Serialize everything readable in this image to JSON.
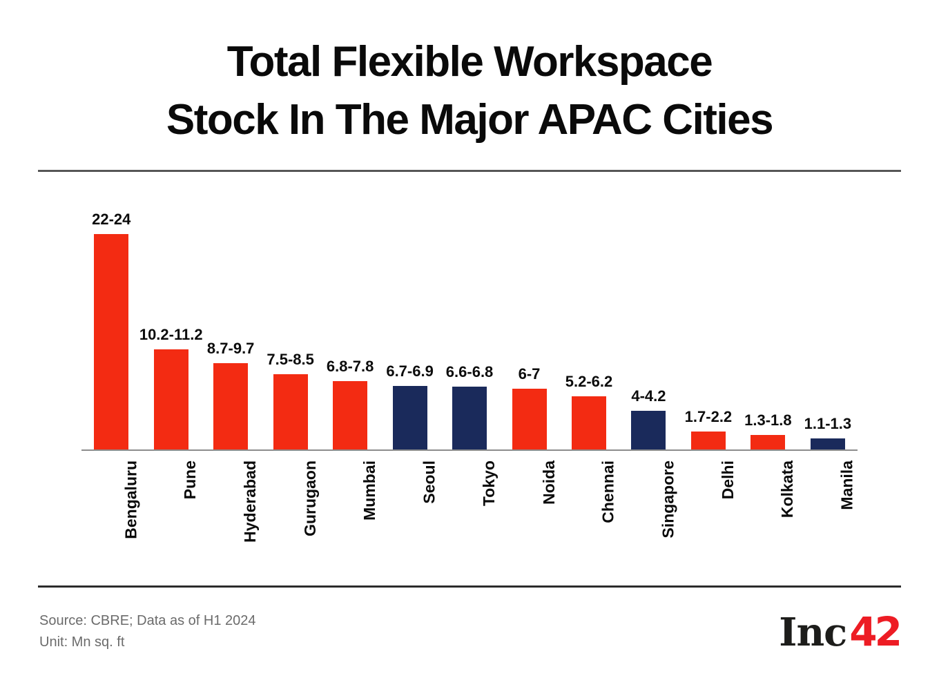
{
  "title": {
    "line1": "Total Flexible Workspace",
    "line2": "Stock In The Major APAC Cities"
  },
  "chart_data": {
    "type": "bar",
    "title": "Total Flexible Workspace Stock In The Major APAC Cities",
    "xlabel": "",
    "ylabel": "Mn sq. ft",
    "ylim": [
      0,
      24
    ],
    "grid": false,
    "legend_position": "none",
    "value_labels_shown": true,
    "categories": [
      "Bengaluru",
      "Pune",
      "Hyderabad",
      "Gurugaon",
      "Mumbai",
      "Seoul",
      "Tokyo",
      "Noida",
      "Chennai",
      "Singapore",
      "Delhi",
      "Kolkata",
      "Manila"
    ],
    "bars": [
      {
        "city": "Bengaluru",
        "label": "22-24",
        "low": 22,
        "high": 24,
        "color": "red"
      },
      {
        "city": "Pune",
        "label": "10.2-11.2",
        "low": 10.2,
        "high": 11.2,
        "color": "red"
      },
      {
        "city": "Hyderabad",
        "label": "8.7-9.7",
        "low": 8.7,
        "high": 9.7,
        "color": "red"
      },
      {
        "city": "Gurugaon",
        "label": "7.5-8.5",
        "low": 7.5,
        "high": 8.5,
        "color": "red"
      },
      {
        "city": "Mumbai",
        "label": "6.8-7.8",
        "low": 6.8,
        "high": 7.8,
        "color": "red"
      },
      {
        "city": "Seoul",
        "label": "6.7-6.9",
        "low": 6.7,
        "high": 6.9,
        "color": "navy"
      },
      {
        "city": "Tokyo",
        "label": "6.6-6.8",
        "low": 6.6,
        "high": 6.8,
        "color": "navy"
      },
      {
        "city": "Noida",
        "label": "6-7",
        "low": 6,
        "high": 7,
        "color": "red"
      },
      {
        "city": "Chennai",
        "label": "5.2-6.2",
        "low": 5.2,
        "high": 6.2,
        "color": "red"
      },
      {
        "city": "Singapore",
        "label": "4-4.2",
        "low": 4,
        "high": 4.2,
        "color": "navy"
      },
      {
        "city": "Delhi",
        "label": "1.7-2.2",
        "low": 1.7,
        "high": 2.2,
        "color": "red"
      },
      {
        "city": "Kolkata",
        "label": "1.3-1.8",
        "low": 1.3,
        "high": 1.8,
        "color": "red"
      },
      {
        "city": "Manila",
        "label": "1.1-1.3",
        "low": 1.1,
        "high": 1.3,
        "color": "navy"
      }
    ],
    "colors": {
      "red": "#f32b12",
      "navy": "#1a2a5b"
    }
  },
  "footer": {
    "source": "Source: CBRE; Data as of H1 2024",
    "unit": "Unit: Mn sq. ft",
    "logo_black": "Inc",
    "logo_red": "42"
  }
}
